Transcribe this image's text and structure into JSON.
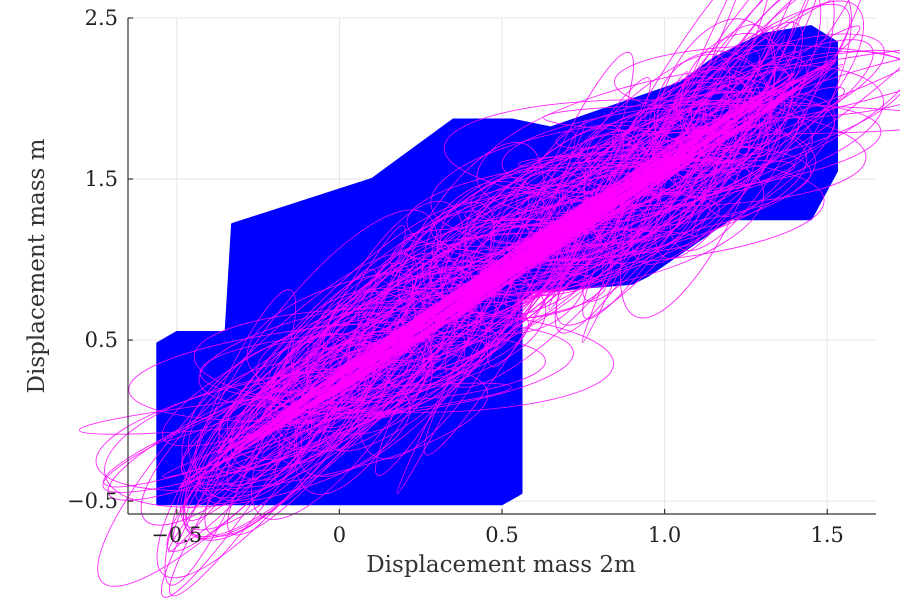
{
  "chart_data": {
    "type": "area",
    "xlabel": "Displacement mass 2m",
    "ylabel": "Displacement mass m",
    "xlim": [
      -0.65,
      1.65
    ],
    "ylim": [
      -0.58,
      2.5
    ],
    "x_ticks": [
      -0.5,
      0,
      0.5,
      1.0,
      1.5
    ],
    "x_tick_labels": [
      "−0.5",
      "0",
      "0.5",
      "1.0",
      "1.5"
    ],
    "y_ticks": [
      -0.5,
      0.5,
      1.5,
      2.5
    ],
    "y_tick_labels": [
      "−0.5",
      "0.5",
      "1.5",
      "2.5"
    ],
    "grid": true,
    "legend": "none",
    "series": [
      {
        "kind": "reachable-set",
        "color": "#0000ff",
        "x": [
          -0.56,
          -0.56,
          -0.5,
          -0.35,
          -0.33,
          0.1,
          0.35,
          0.53,
          0.65,
          1.05,
          1.15,
          1.3,
          1.45,
          1.53,
          1.53,
          1.45,
          1.2,
          0.95,
          0.9,
          0.6,
          0.56,
          0.56,
          0.5,
          -0.56
        ],
        "y": [
          -0.5,
          0.48,
          0.55,
          0.55,
          1.22,
          1.5,
          1.87,
          1.87,
          1.82,
          2.1,
          2.25,
          2.4,
          2.45,
          2.35,
          1.55,
          1.25,
          1.25,
          0.9,
          0.85,
          0.8,
          0.75,
          -0.45,
          -0.52,
          -0.52
        ]
      },
      {
        "kind": "trajectories",
        "color": "#ff00ff",
        "band_axis": {
          "x": [
            -0.3,
            1.35
          ],
          "y": [
            -0.15,
            2.05
          ]
        }
      }
    ]
  }
}
